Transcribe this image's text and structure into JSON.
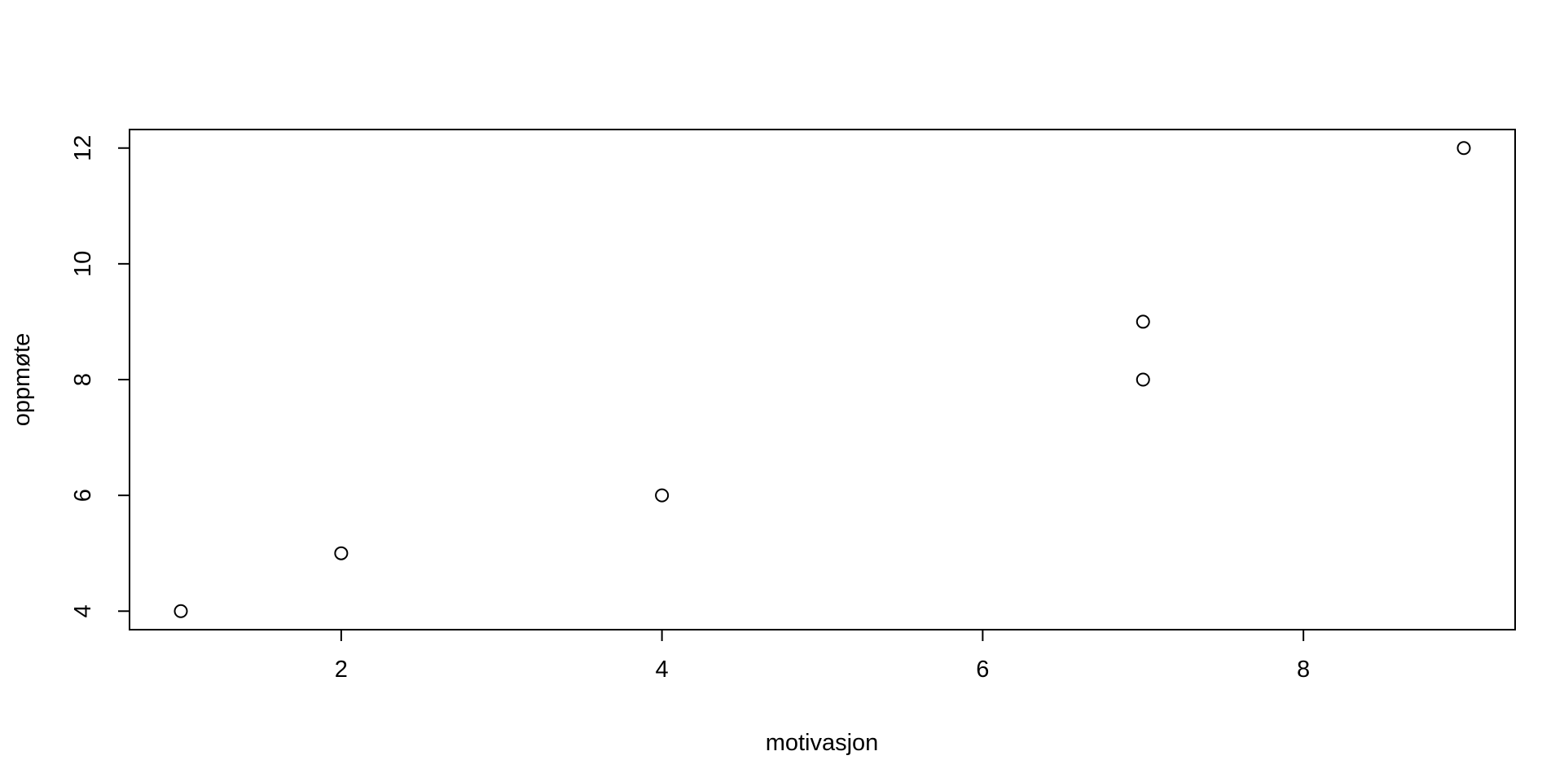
{
  "chart_data": {
    "type": "scatter",
    "title": "",
    "xlabel": "motivasjon",
    "ylabel": "oppmøte",
    "xlim": [
      0.68,
      9.32
    ],
    "ylim": [
      3.68,
      12.32
    ],
    "x_ticks": [
      2,
      4,
      6,
      8
    ],
    "y_ticks": [
      4,
      6,
      8,
      10,
      12
    ],
    "grid": false,
    "legend": "none",
    "marker": "open-circle",
    "color": "#000000",
    "points": [
      {
        "x": 1,
        "y": 4
      },
      {
        "x": 2,
        "y": 5
      },
      {
        "x": 4,
        "y": 6
      },
      {
        "x": 7,
        "y": 8
      },
      {
        "x": 7,
        "y": 9
      },
      {
        "x": 9,
        "y": 12
      }
    ]
  }
}
